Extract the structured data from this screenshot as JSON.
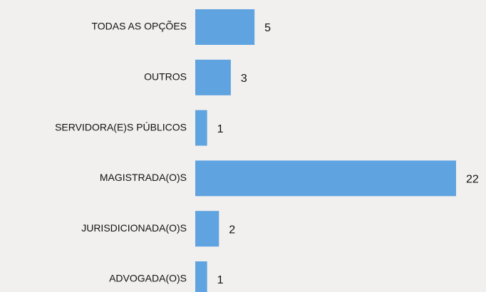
{
  "chart_data": {
    "type": "bar",
    "orientation": "horizontal",
    "categories": [
      "TODAS AS OPÇÕES",
      "OUTROS",
      "SERVIDORA(E)S PÚBLICOS",
      "MAGISTRADA(O)S",
      "JURISDICIONADA(O)S",
      "ADVOGADA(O)S"
    ],
    "values": [
      5,
      3,
      1,
      22,
      2,
      1
    ],
    "color": "#5fa3e0"
  }
}
